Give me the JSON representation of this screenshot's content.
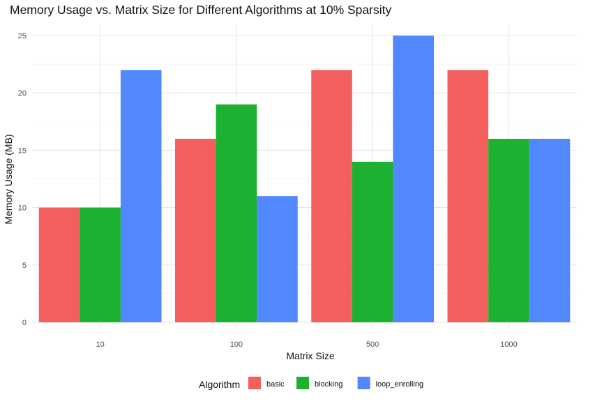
{
  "chart_data": {
    "type": "bar",
    "title": "Memory Usage vs. Matrix Size for Different Algorithms at 10% Sparsity",
    "xlabel": "Matrix Size",
    "ylabel": "Memory Usage (MB)",
    "categories": [
      "10",
      "100",
      "500",
      "1000"
    ],
    "series": [
      {
        "name": "basic",
        "color": "#F25F5C",
        "values": [
          10,
          16,
          22,
          22
        ]
      },
      {
        "name": "blocking",
        "color": "#1CB130",
        "values": [
          10,
          19,
          14,
          16
        ]
      },
      {
        "name": "loop_enrolling",
        "color": "#5188FF",
        "values": [
          22,
          11,
          25,
          16
        ]
      }
    ],
    "ylim": [
      0,
      25
    ],
    "yticks": [
      0,
      5,
      10,
      15,
      20,
      25
    ],
    "grid": true,
    "legend": {
      "title": "Algorithm",
      "position": "bottom"
    }
  }
}
